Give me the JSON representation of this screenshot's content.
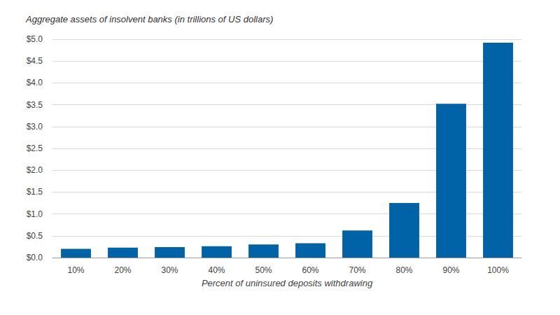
{
  "chart_data": {
    "type": "bar",
    "title": "Aggregate assets of insolvent banks (in trillions of US dollars)",
    "x_label": "Percent of uninsured deposits withdrawing",
    "categories": [
      "10%",
      "20%",
      "30%",
      "40%",
      "50%",
      "60%",
      "70%",
      "80%",
      "90%",
      "100%"
    ],
    "values": [
      0.2,
      0.23,
      0.24,
      0.26,
      0.3,
      0.33,
      0.62,
      1.25,
      3.52,
      4.92
    ],
    "color": "#0063a8",
    "ylim": [
      0,
      5
    ],
    "yticks": [
      {
        "value": 0,
        "label": "$0.0"
      },
      {
        "value": 0.5,
        "label": "$0.5"
      },
      {
        "value": 1,
        "label": "$1.0"
      },
      {
        "value": 1.5,
        "label": "$1.5"
      },
      {
        "value": 2,
        "label": "$2.0"
      },
      {
        "value": 2.5,
        "label": "$2.5"
      },
      {
        "value": 3,
        "label": "$3.0"
      },
      {
        "value": 3.5,
        "label": "$3.5"
      },
      {
        "value": 4,
        "label": "$4.0"
      },
      {
        "value": 4.5,
        "label": "$4.5"
      },
      {
        "value": 5,
        "label": "$5.0"
      }
    ],
    "grid": true
  }
}
